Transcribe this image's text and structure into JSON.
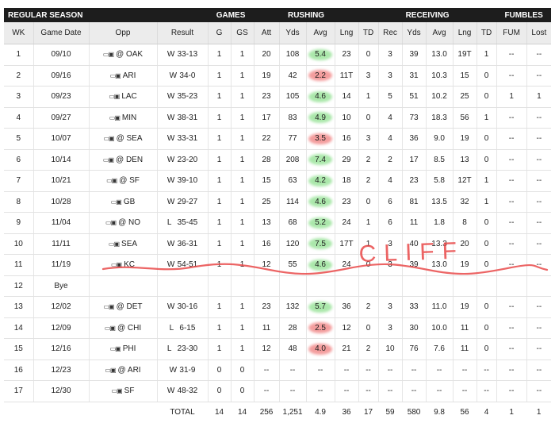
{
  "header": {
    "groups": [
      "REGULAR SEASON",
      "GAMES",
      "RUSHING",
      "RECEIVING",
      "FUMBLES"
    ],
    "columns": [
      "WK",
      "Game Date",
      "Opp",
      "Result",
      "G",
      "GS",
      "Att",
      "Yds",
      "Avg",
      "Lng",
      "TD",
      "Rec",
      "Yds",
      "Avg",
      "Lng",
      "TD",
      "FUM",
      "Lost"
    ]
  },
  "rows": [
    {
      "wk": "1",
      "date": "09/10",
      "opp": "@ OAK",
      "wl": "W",
      "score": "33-13",
      "g": "1",
      "gs": "1",
      "att": "20",
      "yds": "108",
      "avg": "5.4",
      "lng": "23",
      "td": "0",
      "rec": "3",
      "ryds": "39",
      "ravg": "13.0",
      "rlng": "19T",
      "rtd": "1",
      "fum": "--",
      "lost": "--",
      "hl": "good"
    },
    {
      "wk": "2",
      "date": "09/16",
      "opp": "ARI",
      "wl": "W",
      "score": "34-0",
      "g": "1",
      "gs": "1",
      "att": "19",
      "yds": "42",
      "avg": "2.2",
      "lng": "11T",
      "td": "3",
      "rec": "3",
      "ryds": "31",
      "ravg": "10.3",
      "rlng": "15",
      "rtd": "0",
      "fum": "--",
      "lost": "--",
      "hl": "bad"
    },
    {
      "wk": "3",
      "date": "09/23",
      "opp": "LAC",
      "wl": "W",
      "score": "35-23",
      "g": "1",
      "gs": "1",
      "att": "23",
      "yds": "105",
      "avg": "4.6",
      "lng": "14",
      "td": "1",
      "rec": "5",
      "ryds": "51",
      "ravg": "10.2",
      "rlng": "25",
      "rtd": "0",
      "fum": "1",
      "lost": "1",
      "hl": "good"
    },
    {
      "wk": "4",
      "date": "09/27",
      "opp": "MIN",
      "wl": "W",
      "score": "38-31",
      "g": "1",
      "gs": "1",
      "att": "17",
      "yds": "83",
      "avg": "4.9",
      "lng": "10",
      "td": "0",
      "rec": "4",
      "ryds": "73",
      "ravg": "18.3",
      "rlng": "56",
      "rtd": "1",
      "fum": "--",
      "lost": "--",
      "hl": "good"
    },
    {
      "wk": "5",
      "date": "10/07",
      "opp": "@ SEA",
      "wl": "W",
      "score": "33-31",
      "g": "1",
      "gs": "1",
      "att": "22",
      "yds": "77",
      "avg": "3.5",
      "lng": "16",
      "td": "3",
      "rec": "4",
      "ryds": "36",
      "ravg": "9.0",
      "rlng": "19",
      "rtd": "0",
      "fum": "--",
      "lost": "--",
      "hl": "bad"
    },
    {
      "wk": "6",
      "date": "10/14",
      "opp": "@ DEN",
      "wl": "W",
      "score": "23-20",
      "g": "1",
      "gs": "1",
      "att": "28",
      "yds": "208",
      "avg": "7.4",
      "lng": "29",
      "td": "2",
      "rec": "2",
      "ryds": "17",
      "ravg": "8.5",
      "rlng": "13",
      "rtd": "0",
      "fum": "--",
      "lost": "--",
      "hl": "good"
    },
    {
      "wk": "7",
      "date": "10/21",
      "opp": "@ SF",
      "wl": "W",
      "score": "39-10",
      "g": "1",
      "gs": "1",
      "att": "15",
      "yds": "63",
      "avg": "4.2",
      "lng": "18",
      "td": "2",
      "rec": "4",
      "ryds": "23",
      "ravg": "5.8",
      "rlng": "12T",
      "rtd": "1",
      "fum": "--",
      "lost": "--",
      "hl": "good"
    },
    {
      "wk": "8",
      "date": "10/28",
      "opp": "GB",
      "wl": "W",
      "score": "29-27",
      "g": "1",
      "gs": "1",
      "att": "25",
      "yds": "114",
      "avg": "4.6",
      "lng": "23",
      "td": "0",
      "rec": "6",
      "ryds": "81",
      "ravg": "13.5",
      "rlng": "32",
      "rtd": "1",
      "fum": "--",
      "lost": "--",
      "hl": "good"
    },
    {
      "wk": "9",
      "date": "11/04",
      "opp": "@ NO",
      "wl": "L",
      "score": "35-45",
      "g": "1",
      "gs": "1",
      "att": "13",
      "yds": "68",
      "avg": "5.2",
      "lng": "24",
      "td": "1",
      "rec": "6",
      "ryds": "11",
      "ravg": "1.8",
      "rlng": "8",
      "rtd": "0",
      "fum": "--",
      "lost": "--",
      "hl": "good"
    },
    {
      "wk": "10",
      "date": "11/11",
      "opp": "SEA",
      "wl": "W",
      "score": "36-31",
      "g": "1",
      "gs": "1",
      "att": "16",
      "yds": "120",
      "avg": "7.5",
      "lng": "17T",
      "td": "1",
      "rec": "3",
      "ryds": "40",
      "ravg": "13.3",
      "rlng": "20",
      "rtd": "0",
      "fum": "--",
      "lost": "--",
      "hl": "good"
    },
    {
      "wk": "11",
      "date": "11/19",
      "opp": "KC",
      "wl": "W",
      "score": "54-51",
      "g": "1",
      "gs": "1",
      "att": "12",
      "yds": "55",
      "avg": "4.6",
      "lng": "24",
      "td": "0",
      "rec": "3",
      "ryds": "39",
      "ravg": "13.0",
      "rlng": "19",
      "rtd": "0",
      "fum": "--",
      "lost": "--",
      "hl": "good"
    },
    {
      "wk": "12",
      "bye": "Bye"
    },
    {
      "wk": "13",
      "date": "12/02",
      "opp": "@ DET",
      "wl": "W",
      "score": "30-16",
      "g": "1",
      "gs": "1",
      "att": "23",
      "yds": "132",
      "avg": "5.7",
      "lng": "36",
      "td": "2",
      "rec": "3",
      "ryds": "33",
      "ravg": "11.0",
      "rlng": "19",
      "rtd": "0",
      "fum": "--",
      "lost": "--",
      "hl": "good"
    },
    {
      "wk": "14",
      "date": "12/09",
      "opp": "@ CHI",
      "wl": "L",
      "score": "6-15",
      "g": "1",
      "gs": "1",
      "att": "11",
      "yds": "28",
      "avg": "2.5",
      "lng": "12",
      "td": "0",
      "rec": "3",
      "ryds": "30",
      "ravg": "10.0",
      "rlng": "11",
      "rtd": "0",
      "fum": "--",
      "lost": "--",
      "hl": "bad"
    },
    {
      "wk": "15",
      "date": "12/16",
      "opp": "PHI",
      "wl": "L",
      "score": "23-30",
      "g": "1",
      "gs": "1",
      "att": "12",
      "yds": "48",
      "avg": "4.0",
      "lng": "21",
      "td": "2",
      "rec": "10",
      "ryds": "76",
      "ravg": "7.6",
      "rlng": "11",
      "rtd": "0",
      "fum": "--",
      "lost": "--",
      "hl": "bad"
    },
    {
      "wk": "16",
      "date": "12/23",
      "opp": "@ ARI",
      "wl": "W",
      "score": "31-9",
      "g": "0",
      "gs": "0",
      "att": "--",
      "yds": "--",
      "avg": "--",
      "lng": "--",
      "td": "--",
      "rec": "--",
      "ryds": "--",
      "ravg": "--",
      "rlng": "--",
      "rtd": "--",
      "fum": "--",
      "lost": "--",
      "hl": ""
    },
    {
      "wk": "17",
      "date": "12/30",
      "opp": "SF",
      "wl": "W",
      "score": "48-32",
      "g": "0",
      "gs": "0",
      "att": "--",
      "yds": "--",
      "avg": "--",
      "lng": "--",
      "td": "--",
      "rec": "--",
      "ryds": "--",
      "ravg": "--",
      "rlng": "--",
      "rtd": "--",
      "fum": "--",
      "lost": "--",
      "hl": ""
    }
  ],
  "totals": {
    "label": "TOTAL",
    "g": "14",
    "gs": "14",
    "att": "256",
    "yds": "1,251",
    "avg": "4.9",
    "lng": "36",
    "td": "17",
    "rec": "59",
    "ryds": "580",
    "ravg": "9.8",
    "rlng": "56",
    "rtd": "4",
    "fum": "1",
    "lost": "1"
  },
  "annotation": {
    "text": "CLIFF",
    "color": "#e94a4a"
  },
  "colors": {
    "header_bg": "#1d1d1d",
    "subheader_bg": "#ececec",
    "good_highlight": "#8fe08f",
    "bad_highlight": "#f07d7d"
  }
}
